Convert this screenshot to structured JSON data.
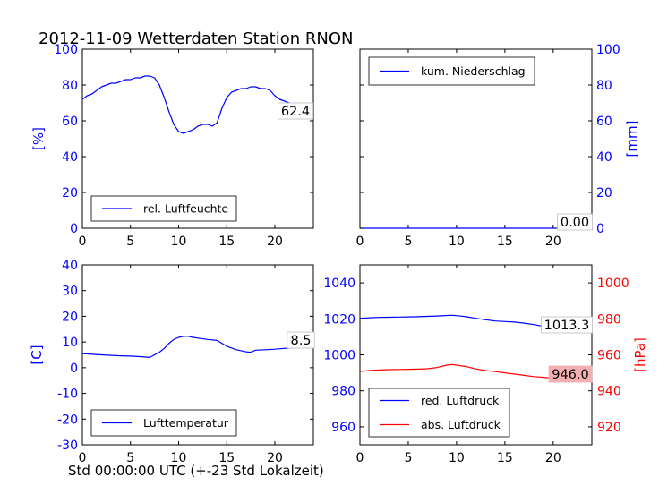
{
  "figure": {
    "title": "2012-11-09 Wetterdaten Station RNON",
    "xlabel": "Std 00:00:00 UTC (+-23 Std Lokalzeit)"
  },
  "colors": {
    "blue": "#0000ff",
    "red": "#ff0000",
    "axis": "#000000",
    "label_box_red": "#f4b0b0"
  },
  "chart_data": [
    {
      "type": "line",
      "panel": "top-left",
      "ylabel": "[%]",
      "xlim": [
        0,
        24
      ],
      "ylim": [
        0,
        100
      ],
      "xticks": [
        0,
        5,
        10,
        15,
        20
      ],
      "yticks": [
        0,
        20,
        40,
        60,
        80,
        100
      ],
      "ytick_side": "left",
      "ytick_color": "blue",
      "legend_position": "lower-center",
      "grid": false,
      "value_label": "62.4",
      "series": [
        {
          "name": "rel. Luftfeuchte",
          "color": "blue",
          "x": [
            0,
            0.5,
            1,
            1.5,
            2,
            2.5,
            3,
            3.5,
            4,
            4.5,
            5,
            5.5,
            6,
            6.5,
            7,
            7.5,
            8,
            8.5,
            9,
            9.5,
            10,
            10.5,
            11,
            11.5,
            12,
            12.5,
            13,
            13.5,
            14,
            14.5,
            15,
            15.5,
            16,
            16.5,
            17,
            17.5,
            18,
            18.5,
            19,
            19.5,
            20,
            20.5,
            21,
            21.5,
            22,
            22.5,
            23,
            23.5,
            24
          ],
          "y": [
            72,
            74,
            75,
            77,
            79,
            80,
            81,
            81,
            82,
            83,
            83,
            84,
            84,
            85,
            85,
            84,
            80,
            73,
            65,
            58,
            54,
            53,
            54,
            55,
            57,
            58,
            58,
            57,
            59,
            67,
            73,
            76,
            77,
            78,
            78,
            79,
            79,
            78,
            78,
            77,
            74,
            72,
            71,
            70,
            69,
            69,
            66,
            64,
            62.4
          ]
        }
      ]
    },
    {
      "type": "line",
      "panel": "top-right",
      "ylabel": "[mm]",
      "xlim": [
        0,
        24
      ],
      "ylim": [
        0,
        100
      ],
      "xticks": [
        0,
        5,
        10,
        15,
        20
      ],
      "yticks": [
        0,
        20,
        40,
        60,
        80,
        100
      ],
      "ytick_side": "right",
      "ytick_color": "blue",
      "legend_position": "upper-left",
      "grid": false,
      "value_label": "0.00",
      "series": [
        {
          "name": "kum. Niederschlag",
          "color": "blue",
          "x": [
            0,
            24
          ],
          "y": [
            0,
            0
          ]
        }
      ]
    },
    {
      "type": "line",
      "panel": "bottom-left",
      "ylabel": "[C]",
      "xlim": [
        0,
        24
      ],
      "ylim": [
        -30,
        40
      ],
      "xticks": [
        0,
        5,
        10,
        15,
        20
      ],
      "yticks": [
        -30,
        -20,
        -10,
        0,
        10,
        20,
        30,
        40
      ],
      "ytick_side": "left",
      "ytick_color": "blue",
      "legend_position": "lower-center",
      "grid": false,
      "value_label": "8.5",
      "series": [
        {
          "name": "Lufttemperatur",
          "color": "blue",
          "x": [
            0,
            1,
            2,
            3,
            4,
            5,
            6,
            7,
            8,
            8.5,
            9,
            9.5,
            10,
            10.5,
            11,
            11.5,
            12,
            13,
            14,
            14.5,
            15,
            16,
            17,
            17.5,
            18,
            19,
            20,
            21,
            22,
            23,
            24
          ],
          "y": [
            5.5,
            5.2,
            5.0,
            4.8,
            4.6,
            4.5,
            4.3,
            4.0,
            6.0,
            7.5,
            9.5,
            11.0,
            11.8,
            12.2,
            12.2,
            11.8,
            11.5,
            11.0,
            10.6,
            9.5,
            8.3,
            7.0,
            6.2,
            6.0,
            6.8,
            7.0,
            7.2,
            7.5,
            7.8,
            8.1,
            8.5
          ]
        }
      ]
    },
    {
      "type": "line",
      "panel": "bottom-right",
      "ylabel": "[hPa]",
      "xlim": [
        0,
        24
      ],
      "ylim": [
        950,
        1050
      ],
      "ylim_right": [
        910,
        1010
      ],
      "xticks": [
        0,
        5,
        10,
        15,
        20
      ],
      "yticks": [
        960,
        980,
        1000,
        1020,
        1040
      ],
      "yticks_right": [
        920,
        940,
        960,
        980,
        1000
      ],
      "ytick_color": "blue",
      "ytick_right_color": "red",
      "legend_position": "lower-left",
      "grid": false,
      "value_labels": [
        "1013.3",
        "946.0"
      ],
      "series": [
        {
          "name": "red. Luftdruck",
          "color": "blue",
          "axis": "left",
          "x": [
            0,
            1,
            2,
            3,
            4,
            5,
            6,
            7,
            8,
            9,
            9.5,
            10,
            11,
            12,
            13,
            14,
            15,
            16,
            17,
            18,
            19,
            20,
            21,
            22,
            23,
            24
          ],
          "y": [
            1020.3,
            1020.6,
            1020.8,
            1020.9,
            1021.0,
            1021.1,
            1021.2,
            1021.4,
            1021.6,
            1021.9,
            1022.0,
            1021.8,
            1021.2,
            1020.3,
            1019.5,
            1018.8,
            1018.5,
            1018.2,
            1017.6,
            1016.8,
            1015.8,
            1015.2,
            1014.8,
            1014.3,
            1013.8,
            1013.3
          ]
        },
        {
          "name": "abs. Luftdruck",
          "color": "red",
          "axis": "right",
          "x": [
            0,
            1,
            2,
            3,
            4,
            5,
            6,
            7,
            8,
            9,
            9.5,
            10,
            11,
            12,
            13,
            14,
            15,
            16,
            17,
            18,
            19,
            20,
            21,
            22,
            23,
            24
          ],
          "y": [
            950.8,
            951.3,
            951.6,
            951.8,
            951.9,
            952.0,
            952.1,
            952.3,
            953.0,
            954.3,
            954.6,
            954.3,
            953.5,
            952.2,
            951.3,
            950.7,
            950.0,
            949.3,
            948.6,
            947.9,
            947.5,
            947.0,
            946.8,
            946.5,
            946.2,
            946.0
          ]
        }
      ]
    }
  ]
}
